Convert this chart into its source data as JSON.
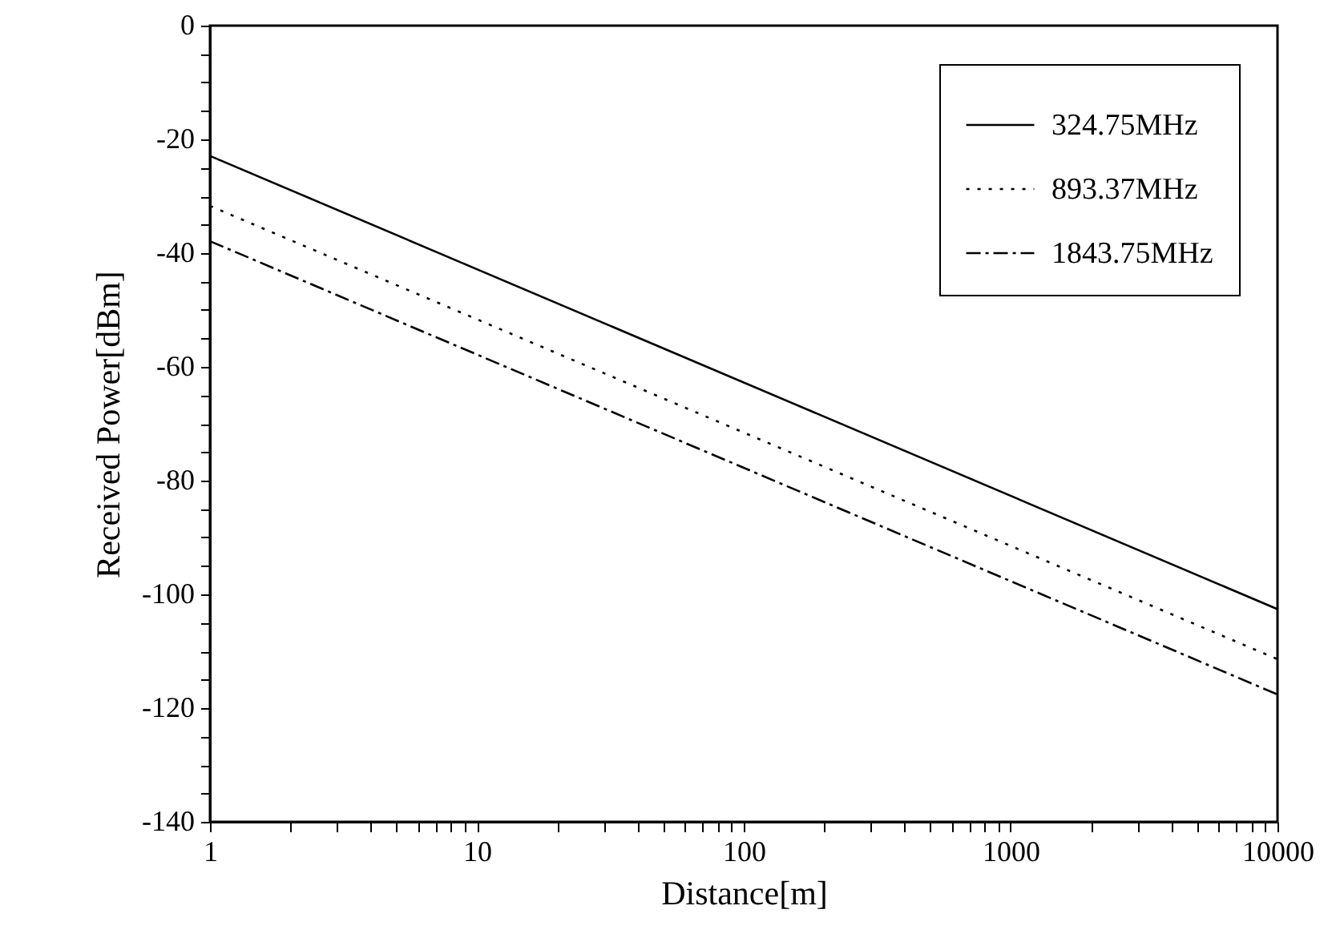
{
  "chart_data": {
    "type": "line",
    "xlabel": "Distance[m]",
    "ylabel": "Received Power[dBm]",
    "log": "x",
    "x": [
      1,
      10000
    ],
    "series": [
      {
        "name": "324.75MHz",
        "color": "#000000",
        "line_style": "solid",
        "values": [
          -22.9,
          -102.6
        ]
      },
      {
        "name": "893.37MHz",
        "color": "#000000",
        "line_style": "dotted",
        "values": [
          -31.7,
          -111.4
        ]
      },
      {
        "name": "1843.75MHz",
        "color": "#000000",
        "line_style": "dashed",
        "values": [
          -37.9,
          -117.6
        ]
      }
    ],
    "xlim": [
      1,
      10000
    ],
    "ylim": [
      -140,
      0
    ],
    "xticks": [
      1,
      {
        "value": 2,
        "label": null
      },
      {
        "value": 3,
        "label": null
      },
      {
        "value": 4,
        "label": null
      },
      {
        "value": 5,
        "label": null
      },
      {
        "value": 6,
        "label": null
      },
      {
        "value": 7,
        "label": null
      },
      {
        "value": 8,
        "label": null
      },
      {
        "value": 9,
        "label": null
      },
      10,
      {
        "value": 20,
        "label": null
      },
      {
        "value": 30,
        "label": null
      },
      {
        "value": 40,
        "label": null
      },
      {
        "value": 50,
        "label": null
      },
      {
        "value": 60,
        "label": null
      },
      {
        "value": 70,
        "label": null
      },
      {
        "value": 80,
        "label": null
      },
      {
        "value": 90,
        "label": null
      },
      100,
      {
        "value": 200,
        "label": null
      },
      {
        "value": 300,
        "label": null
      },
      {
        "value": 400,
        "label": null
      },
      {
        "value": 500,
        "label": null
      },
      {
        "value": 600,
        "label": null
      },
      {
        "value": 700,
        "label": null
      },
      {
        "value": 800,
        "label": null
      },
      {
        "value": 900,
        "label": null
      },
      1000,
      {
        "value": 2000,
        "label": null
      },
      {
        "value": 3000,
        "label": null
      },
      {
        "value": 4000,
        "label": null
      },
      {
        "value": 5000,
        "label": null
      },
      {
        "value": 6000,
        "label": null
      },
      {
        "value": 7000,
        "label": null
      },
      {
        "value": 8000,
        "label": null
      },
      {
        "value": 9000,
        "label": null
      },
      10000
    ],
    "yticks": [
      -140,
      {
        "value": -135,
        "label": null
      },
      {
        "value": -130,
        "label": null
      },
      {
        "value": -125,
        "label": null
      },
      -120,
      {
        "value": -115,
        "label": null
      },
      {
        "value": -110,
        "label": null
      },
      {
        "value": -105,
        "label": null
      },
      -100,
      {
        "value": -95,
        "label": null
      },
      {
        "value": -90,
        "label": null
      },
      {
        "value": -85,
        "label": null
      },
      -80,
      {
        "value": -75,
        "label": null
      },
      {
        "value": -70,
        "label": null
      },
      {
        "value": -65,
        "label": null
      },
      -60,
      {
        "value": -55,
        "label": null
      },
      {
        "value": -50,
        "label": null
      },
      {
        "value": -45,
        "label": null
      },
      -40,
      {
        "value": -35,
        "label": null
      },
      {
        "value": -30,
        "label": null
      },
      {
        "value": -25,
        "label": null
      },
      -20,
      {
        "value": -15,
        "label": null
      },
      {
        "value": -10,
        "label": null
      },
      {
        "value": -5,
        "label": null
      },
      0
    ],
    "grid": false,
    "legend": "top right"
  }
}
